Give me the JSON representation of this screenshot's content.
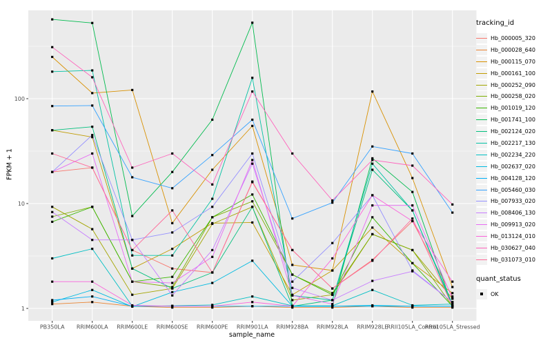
{
  "chart_data": {
    "type": "line",
    "title": "",
    "xlabel": "sample_name",
    "ylabel": "FPKM + 1",
    "y_scale": "log10",
    "y_ticks": [
      1,
      10,
      100
    ],
    "y_minor_ticks": [
      3.1623,
      31.623,
      316.23
    ],
    "ylim": [
      1,
      700
    ],
    "grid": "on",
    "legend_position": "right",
    "panel_bg": "#EBEBEB",
    "grid_color": "#FFFFFF",
    "tick_label_color": "#4D4D4D",
    "axis_title_color": "#000000",
    "point_color": "#000000",
    "point_shape": "square",
    "legend_title": "tracking_id",
    "legend2_title": "quant_status",
    "legend2_items": [
      "OK"
    ],
    "categories": [
      "PB350LA",
      "RRIM600LA",
      "RRIM600LE",
      "RRIM600SE",
      "RRIM600PE",
      "RRIM901LA",
      "RRIM928BA",
      "RRIM928LA",
      "RRIM928LE",
      "RRII105LA_Control",
      "RRII105LA_Stressed"
    ],
    "series": [
      {
        "name": "Hb_000005_320",
        "color": "#F8766D",
        "values": [
          20,
          22,
          3.6,
          2.4,
          2.2,
          16,
          3.6,
          1.55,
          2.9,
          6.8,
          1.3
        ]
      },
      {
        "name": "Hb_000028_640",
        "color": "#EA8331",
        "values": [
          1.1,
          1.15,
          1.05,
          1.02,
          1.02,
          1.05,
          1.02,
          1.02,
          1.05,
          1.02,
          1.02
        ]
      },
      {
        "name": "Hb_000115_070",
        "color": "#D89000",
        "values": [
          250,
          113,
          121,
          6.5,
          21,
          55,
          2.6,
          2.3,
          117,
          17.5,
          1.6
        ]
      },
      {
        "name": "Hb_000161_100",
        "color": "#C09B00",
        "values": [
          50,
          43,
          2.4,
          3.7,
          6.5,
          6.6,
          1.35,
          2.3,
          5.9,
          2.7,
          1.4
        ]
      },
      {
        "name": "Hb_000252_090",
        "color": "#A3A500",
        "values": [
          9.3,
          5.7,
          1.35,
          1.55,
          6.4,
          9.3,
          1.2,
          1.35,
          5.1,
          3.6,
          1.24
        ]
      },
      {
        "name": "Hb_000258_020",
        "color": "#7CAE00",
        "values": [
          7.5,
          9.3,
          1.8,
          1.6,
          7.4,
          10.5,
          2.1,
          1.4,
          5.1,
          3.6,
          1.05
        ]
      },
      {
        "name": "Hb_001019_120",
        "color": "#39B600",
        "values": [
          6.7,
          9.3,
          1.8,
          2.0,
          7.4,
          12.2,
          2.1,
          1.35,
          7.4,
          2.7,
          1.05
        ]
      },
      {
        "name": "Hb_001741_100",
        "color": "#00BB4E",
        "values": [
          570,
          527,
          7.6,
          20,
          63,
          530,
          1.05,
          1.05,
          27,
          12.9,
          1.05
        ]
      },
      {
        "name": "Hb_002124_020",
        "color": "#00BF7D",
        "values": [
          50,
          54,
          2.4,
          1.55,
          2.2,
          9.3,
          1.05,
          1.2,
          21,
          8.6,
          1.05
        ]
      },
      {
        "name": "Hb_002217_130",
        "color": "#00C1A3",
        "values": [
          181,
          186,
          3.2,
          3.2,
          11.1,
          158,
          1.33,
          1.2,
          24,
          8.6,
          1.1
        ]
      },
      {
        "name": "Hb_002234_220",
        "color": "#00BFC4",
        "values": [
          3.0,
          3.7,
          1.05,
          1.06,
          1.08,
          1.3,
          1.06,
          1.06,
          1.5,
          1.07,
          1.1
        ]
      },
      {
        "name": "Hb_002637_020",
        "color": "#00BAE0",
        "values": [
          1.15,
          1.5,
          1.04,
          1.43,
          1.75,
          2.85,
          1.05,
          1.05,
          1.07,
          1.05,
          1.05
        ]
      },
      {
        "name": "Hb_004128_120",
        "color": "#00B0F6",
        "values": [
          1.2,
          1.3,
          1.05,
          1.05,
          1.05,
          1.05,
          1.05,
          1.05,
          1.05,
          1.05,
          1.05
        ]
      },
      {
        "name": "Hb_005460_030",
        "color": "#35A2FF",
        "values": [
          85,
          86,
          17.8,
          14,
          29,
          63,
          7.2,
          10.2,
          35,
          30,
          8.2
        ]
      },
      {
        "name": "Hb_007933_020",
        "color": "#9590FF",
        "values": [
          20,
          45,
          4.5,
          5.3,
          9.3,
          30,
          1.8,
          4.2,
          12,
          2.3,
          1.15
        ]
      },
      {
        "name": "Hb_008406_130",
        "color": "#C77CFF",
        "values": [
          8.3,
          4.5,
          4.5,
          1.33,
          3.6,
          24,
          1.57,
          1.2,
          1.83,
          2.26,
          1.15
        ]
      },
      {
        "name": "Hb_009913_020",
        "color": "#E76BF3",
        "values": [
          20,
          30,
          1.8,
          1.75,
          3.1,
          26,
          1.33,
          1.1,
          9.6,
          9.6,
          1.24
        ]
      },
      {
        "name": "Hb_013124_010",
        "color": "#FA62DB",
        "values": [
          1.8,
          1.8,
          1.07,
          1.05,
          1.05,
          1.15,
          1.05,
          3.0,
          12,
          6.8,
          1.8
        ]
      },
      {
        "name": "Hb_030627_040",
        "color": "#FF62BC",
        "values": [
          310,
          160,
          22,
          30,
          15.2,
          117,
          30,
          10.7,
          26,
          23,
          9.8
        ]
      },
      {
        "name": "Hb_031073_010",
        "color": "#FF6A98",
        "values": [
          30,
          22,
          3.6,
          8.6,
          2.2,
          16.2,
          3.6,
          1.55,
          2.85,
          7.2,
          1.05
        ]
      }
    ]
  }
}
